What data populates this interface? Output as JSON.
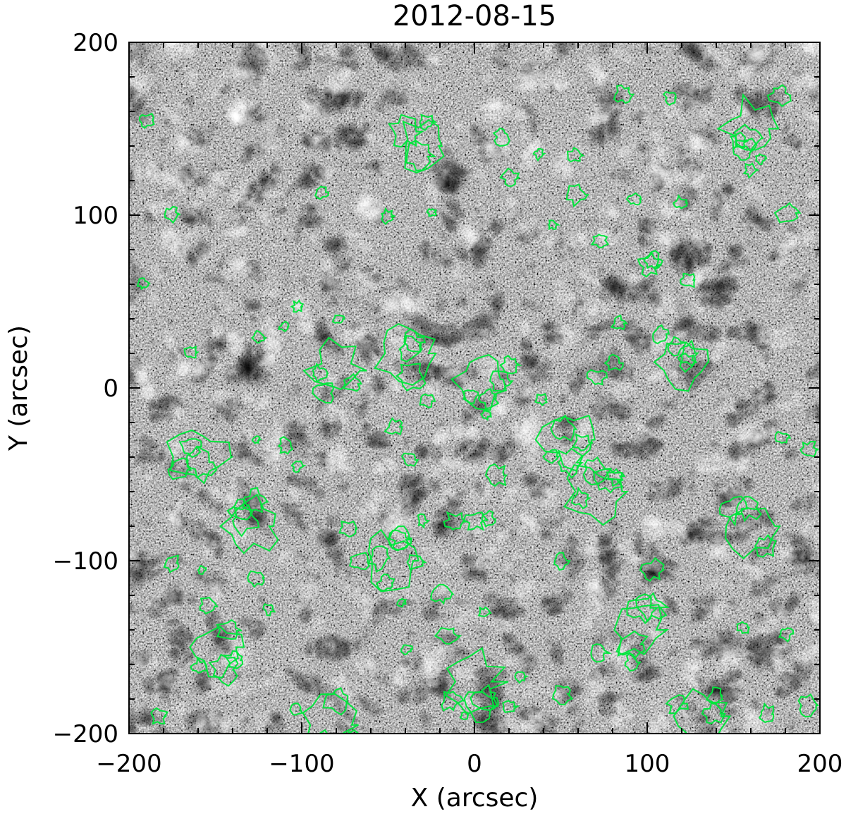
{
  "figure": {
    "title": "2012-08-15",
    "xlabel": "X (arcsec)",
    "ylabel": "Y (arcsec)",
    "xlim": [
      -200,
      200
    ],
    "ylim": [
      -200,
      200
    ],
    "x_ticks": [
      "−200",
      "−100",
      "0",
      "100",
      "200"
    ],
    "y_ticks": [
      "−200",
      "−100",
      "0",
      "100",
      "200"
    ],
    "x_tick_values": [
      -200,
      -100,
      0,
      100,
      200
    ],
    "y_tick_values": [
      -200,
      -100,
      0,
      100,
      200
    ],
    "colors": {
      "contour": "#00e63c",
      "frame": "#000000",
      "background": "#ffffff"
    }
  },
  "image_content": {
    "type": "grayscale magnetogram with green contour overlay",
    "contour_regions": [
      {
        "x": -30,
        "y": 140
      },
      {
        "x": 5,
        "y": 5
      },
      {
        "x": -40,
        "y": 20
      },
      {
        "x": 120,
        "y": 15
      },
      {
        "x": 55,
        "y": -30
      },
      {
        "x": 70,
        "y": -60
      },
      {
        "x": 95,
        "y": -140
      },
      {
        "x": -150,
        "y": -150
      },
      {
        "x": -130,
        "y": -80
      },
      {
        "x": -160,
        "y": -40
      },
      {
        "x": -50,
        "y": -100
      },
      {
        "x": 160,
        "y": 150
      },
      {
        "x": 160,
        "y": -80
      },
      {
        "x": -80,
        "y": 10
      },
      {
        "x": 0,
        "y": -170
      },
      {
        "x": -85,
        "y": -195
      },
      {
        "x": 130,
        "y": -190
      }
    ]
  }
}
